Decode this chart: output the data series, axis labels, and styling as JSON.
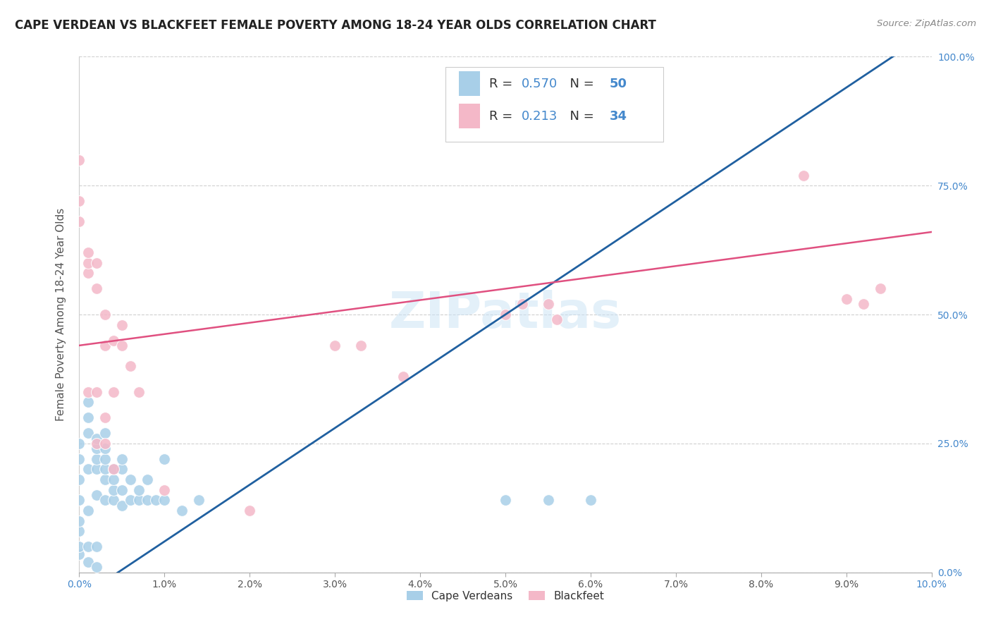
{
  "title": "CAPE VERDEAN VS BLACKFEET FEMALE POVERTY AMONG 18-24 YEAR OLDS CORRELATION CHART",
  "source": "Source: ZipAtlas.com",
  "ylabel": "Female Poverty Among 18-24 Year Olds",
  "watermark": "ZIPatlas",
  "legend_blue_r": "0.570",
  "legend_blue_n": "50",
  "legend_pink_r": "0.213",
  "legend_pink_n": "34",
  "blue_color": "#a8cfe8",
  "pink_color": "#f4b8c8",
  "blue_line_color": "#2060a0",
  "pink_line_color": "#e05080",
  "blue_scatter": [
    [
      0.0,
      0.035
    ],
    [
      0.0,
      0.05
    ],
    [
      0.0,
      0.08
    ],
    [
      0.0,
      0.1
    ],
    [
      0.0,
      0.14
    ],
    [
      0.0,
      0.18
    ],
    [
      0.0,
      0.22
    ],
    [
      0.0,
      0.25
    ],
    [
      0.001,
      0.02
    ],
    [
      0.001,
      0.05
    ],
    [
      0.001,
      0.12
    ],
    [
      0.001,
      0.2
    ],
    [
      0.001,
      0.27
    ],
    [
      0.001,
      0.3
    ],
    [
      0.001,
      0.33
    ],
    [
      0.002,
      0.01
    ],
    [
      0.002,
      0.05
    ],
    [
      0.002,
      0.15
    ],
    [
      0.002,
      0.2
    ],
    [
      0.002,
      0.22
    ],
    [
      0.002,
      0.24
    ],
    [
      0.002,
      0.26
    ],
    [
      0.003,
      0.14
    ],
    [
      0.003,
      0.18
    ],
    [
      0.003,
      0.2
    ],
    [
      0.003,
      0.22
    ],
    [
      0.003,
      0.24
    ],
    [
      0.003,
      0.27
    ],
    [
      0.004,
      0.14
    ],
    [
      0.004,
      0.16
    ],
    [
      0.004,
      0.18
    ],
    [
      0.004,
      0.2
    ],
    [
      0.005,
      0.13
    ],
    [
      0.005,
      0.16
    ],
    [
      0.005,
      0.2
    ],
    [
      0.005,
      0.22
    ],
    [
      0.006,
      0.14
    ],
    [
      0.006,
      0.18
    ],
    [
      0.007,
      0.14
    ],
    [
      0.007,
      0.16
    ],
    [
      0.008,
      0.14
    ],
    [
      0.008,
      0.18
    ],
    [
      0.009,
      0.14
    ],
    [
      0.01,
      0.14
    ],
    [
      0.01,
      0.22
    ],
    [
      0.012,
      0.12
    ],
    [
      0.014,
      0.14
    ],
    [
      0.05,
      0.14
    ],
    [
      0.055,
      0.14
    ],
    [
      0.06,
      0.14
    ]
  ],
  "pink_scatter": [
    [
      0.0,
      0.68
    ],
    [
      0.0,
      0.72
    ],
    [
      0.0,
      0.8
    ],
    [
      0.001,
      0.35
    ],
    [
      0.001,
      0.58
    ],
    [
      0.001,
      0.6
    ],
    [
      0.001,
      0.62
    ],
    [
      0.002,
      0.25
    ],
    [
      0.002,
      0.35
    ],
    [
      0.002,
      0.55
    ],
    [
      0.002,
      0.6
    ],
    [
      0.003,
      0.25
    ],
    [
      0.003,
      0.3
    ],
    [
      0.003,
      0.44
    ],
    [
      0.003,
      0.5
    ],
    [
      0.004,
      0.2
    ],
    [
      0.004,
      0.35
    ],
    [
      0.004,
      0.45
    ],
    [
      0.005,
      0.44
    ],
    [
      0.005,
      0.48
    ],
    [
      0.006,
      0.4
    ],
    [
      0.007,
      0.35
    ],
    [
      0.01,
      0.16
    ],
    [
      0.02,
      0.12
    ],
    [
      0.03,
      0.44
    ],
    [
      0.033,
      0.44
    ],
    [
      0.038,
      0.38
    ],
    [
      0.05,
      0.5
    ],
    [
      0.052,
      0.52
    ],
    [
      0.055,
      0.52
    ],
    [
      0.056,
      0.49
    ],
    [
      0.085,
      0.77
    ],
    [
      0.09,
      0.53
    ],
    [
      0.092,
      0.52
    ],
    [
      0.094,
      0.55
    ]
  ],
  "blue_line_x": [
    0.0,
    0.1
  ],
  "blue_line_y": [
    -0.05,
    1.05
  ],
  "pink_line_x": [
    0.0,
    0.1
  ],
  "pink_line_y": [
    0.44,
    0.66
  ],
  "xlim": [
    0.0,
    0.1
  ],
  "ylim": [
    0.0,
    1.0
  ],
  "xtick_vals": [
    0.0,
    0.01,
    0.02,
    0.03,
    0.04,
    0.05,
    0.06,
    0.07,
    0.08,
    0.09,
    0.1
  ],
  "xtick_labels": [
    "0.0%",
    "1.0%",
    "2.0%",
    "3.0%",
    "4.0%",
    "5.0%",
    "6.0%",
    "7.0%",
    "8.0%",
    "9.0%",
    "10.0%"
  ],
  "ytick_vals": [
    0.0,
    0.25,
    0.5,
    0.75,
    1.0
  ],
  "ytick_labels_right": [
    "0.0%",
    "25.0%",
    "50.0%",
    "75.0%",
    "100.0%"
  ],
  "background_color": "#ffffff",
  "grid_color": "#d0d0d0"
}
